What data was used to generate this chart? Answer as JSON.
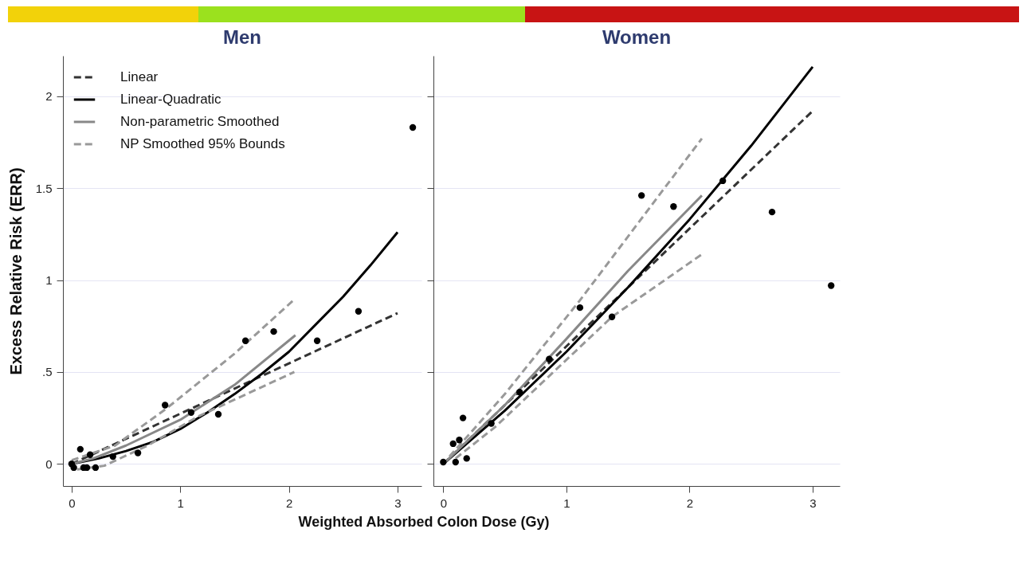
{
  "chart_data": [
    {
      "type": "line",
      "title": "Men",
      "ylabel": "Excess Relative Risk (ERR)",
      "xlabel": "Weighted Absorbed Colon Dose (Gy)",
      "xlim": [
        -0.08,
        3.22
      ],
      "xticks": [
        0,
        1,
        2,
        3
      ],
      "ylim": [
        -0.12,
        2.22
      ],
      "yticks": [
        0,
        {
          "value": 0.5,
          "label": ".5"
        },
        1,
        1.5,
        2
      ],
      "grid": "y",
      "legend": "top left",
      "series": [
        {
          "type": "scatter",
          "color": "#000000",
          "marker": "circle",
          "x": [
            0,
            0.02,
            0.08,
            0.11,
            0.14,
            0.17,
            0.22,
            0.38,
            0.61,
            0.86,
            1.1,
            1.35,
            1.6,
            1.86,
            2.26,
            2.64,
            3.14
          ],
          "values": [
            0,
            -0.02,
            0.08,
            -0.02,
            -0.02,
            0.05,
            -0.02,
            0.04,
            0.06,
            0.32,
            0.28,
            0.27,
            0.67,
            0.72,
            0.67,
            0.83,
            1.83
          ]
        },
        {
          "name": "Linear",
          "color": "#333333",
          "line_style": "dashed",
          "x": [
            0,
            3
          ],
          "values": [
            0,
            0.82
          ]
        },
        {
          "name": "Linear-Quadratic",
          "color": "#000000",
          "line_style": "solid",
          "x": [
            0,
            0.25,
            0.5,
            0.75,
            1,
            1.25,
            1.5,
            1.75,
            2,
            2.25,
            2.5,
            2.75,
            3
          ],
          "values": [
            0,
            0.03,
            0.07,
            0.12,
            0.19,
            0.28,
            0.38,
            0.49,
            0.61,
            0.76,
            0.91,
            1.08,
            1.26
          ]
        },
        {
          "name": "Non-parametric Smoothed",
          "color": "#888888",
          "line_style": "solid",
          "x": [
            0,
            0.2,
            0.5,
            1,
            1.5,
            2.06
          ],
          "values": [
            0,
            0.03,
            0.1,
            0.24,
            0.43,
            0.7
          ]
        },
        {
          "name": "NP Smoothed 95% Bounds",
          "color": "#999999",
          "line_style": "dashed",
          "x": [
            0,
            0.4,
            0.87,
            1.5,
            2.06
          ],
          "values": [
            0.02,
            0.1,
            0.3,
            0.6,
            0.9
          ]
        },
        {
          "color": "#999999",
          "line_style": "dashed",
          "x": [
            0.05,
            0.3,
            0.7,
            1.17,
            2.05
          ],
          "values": [
            -0.03,
            -0.01,
            0.1,
            0.26,
            0.5
          ]
        }
      ]
    },
    {
      "type": "line",
      "title": "Women",
      "xlim": [
        -0.08,
        3.22
      ],
      "xticks": [
        0,
        1,
        2,
        3
      ],
      "ylim": [
        -0.12,
        2.22
      ],
      "yticks": [
        0,
        0.5,
        1,
        1.5,
        2
      ],
      "grid": "y",
      "tick_labels": "x",
      "series": [
        {
          "type": "scatter",
          "color": "#000000",
          "marker": "circle",
          "x": [
            0,
            0.08,
            0.1,
            0.13,
            0.16,
            0.19,
            0.39,
            0.62,
            0.86,
            1.11,
            1.37,
            1.61,
            1.87,
            2.27,
            2.67,
            3.15
          ],
          "values": [
            0.01,
            0.11,
            0.01,
            0.13,
            0.25,
            0.03,
            0.22,
            0.39,
            0.57,
            0.85,
            0.8,
            1.46,
            1.4,
            1.54,
            1.37,
            0.97
          ]
        },
        {
          "color": "#333333",
          "line_style": "dashed",
          "x": [
            0,
            3
          ],
          "values": [
            0,
            1.92
          ]
        },
        {
          "color": "#000000",
          "line_style": "solid",
          "x": [
            0,
            0.5,
            1,
            1.5,
            2,
            2.5,
            3
          ],
          "values": [
            0,
            0.29,
            0.61,
            0.96,
            1.33,
            1.73,
            2.16
          ]
        },
        {
          "color": "#888888",
          "line_style": "solid",
          "x": [
            0,
            0.5,
            1,
            1.5,
            2.1
          ],
          "values": [
            0,
            0.32,
            0.68,
            1.05,
            1.46
          ]
        },
        {
          "color": "#999999",
          "line_style": "dashed",
          "x": [
            0.05,
            0.5,
            1.11,
            2.1
          ],
          "values": [
            0.04,
            0.38,
            0.89,
            1.77
          ]
        },
        {
          "color": "#999999",
          "line_style": "dashed",
          "x": [
            0.1,
            0.42,
            1.37,
            2.1
          ],
          "values": [
            0.03,
            0.2,
            0.8,
            1.14
          ]
        }
      ]
    }
  ]
}
